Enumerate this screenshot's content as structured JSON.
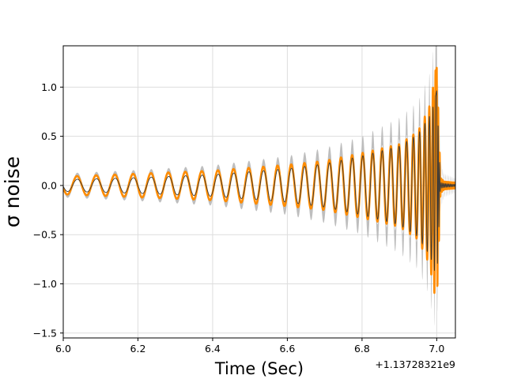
{
  "chart_data": {
    "type": "line",
    "title": "",
    "xlabel": "Time (Sec)",
    "ylabel": "σ noise",
    "x_offset_label": "+1.13728321e9",
    "xlim": [
      6.0,
      7.05
    ],
    "ylim": [
      -1.55,
      1.42
    ],
    "grid": true,
    "x_ticks": [
      "6.0",
      "6.2",
      "6.4",
      "6.6",
      "6.8",
      "7.0"
    ],
    "x_tick_values": [
      6.0,
      6.2,
      6.4,
      6.6,
      6.8,
      7.0
    ],
    "y_ticks": [
      "−1.5",
      "−1.0",
      "−0.5",
      "0.0",
      "0.5",
      "1.0"
    ],
    "y_tick_values": [
      -1.5,
      -1.0,
      -0.5,
      0.0,
      0.5,
      1.0
    ],
    "colors": {
      "band": "#b3b3b3",
      "orange": "#ff8c00",
      "median": "#3a3a3a",
      "grid": "#dddddd"
    },
    "series": [
      {
        "kind": "band",
        "envelope": [
          [
            6.0,
            0.1
          ],
          [
            6.2,
            0.13
          ],
          [
            6.4,
            0.17
          ],
          [
            6.6,
            0.25
          ],
          [
            6.7,
            0.32
          ],
          [
            6.8,
            0.42
          ],
          [
            6.9,
            0.58
          ],
          [
            6.95,
            0.72
          ],
          [
            6.98,
            0.95
          ],
          [
            6.99,
            1.15
          ],
          [
            7.0,
            1.3
          ],
          [
            7.01,
            0.2
          ],
          [
            7.02,
            0.1
          ],
          [
            7.05,
            0.06
          ]
        ]
      },
      {
        "kind": "orange",
        "envelope": [
          [
            6.0,
            0.09
          ],
          [
            6.2,
            0.12
          ],
          [
            6.4,
            0.15
          ],
          [
            6.6,
            0.21
          ],
          [
            6.7,
            0.25
          ],
          [
            6.8,
            0.33
          ],
          [
            6.9,
            0.42
          ],
          [
            6.95,
            0.55
          ],
          [
            6.98,
            0.8
          ],
          [
            6.99,
            1.0
          ],
          [
            7.0,
            1.25
          ],
          [
            7.01,
            0.08
          ],
          [
            7.02,
            0.04
          ],
          [
            7.05,
            0.03
          ]
        ]
      },
      {
        "kind": "median",
        "envelope": [
          [
            6.0,
            0.06
          ],
          [
            6.2,
            0.08
          ],
          [
            6.4,
            0.11
          ],
          [
            6.6,
            0.17
          ],
          [
            6.7,
            0.22
          ],
          [
            6.8,
            0.3
          ],
          [
            6.9,
            0.4
          ],
          [
            6.95,
            0.52
          ],
          [
            6.98,
            0.7
          ],
          [
            6.99,
            0.8
          ],
          [
            7.0,
            0.98
          ],
          [
            7.01,
            0.03
          ],
          [
            7.02,
            0.02
          ],
          [
            7.05,
            0.01
          ]
        ]
      }
    ]
  }
}
